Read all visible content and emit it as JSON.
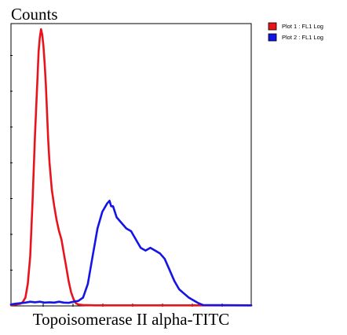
{
  "chart_data": {
    "type": "line",
    "title": "",
    "ylabel": "Counts",
    "xlabel": "Topoisomerase II alpha-TITC",
    "xlim": [
      0,
      100
    ],
    "ylim": [
      0,
      100
    ],
    "x_scale": "log",
    "y_ticks_labeled": false,
    "grid": false,
    "legend": {
      "placement": "top-right-outside",
      "entries": [
        "Plot 1 : FL1 Log",
        "Plot 2 : FL1 Log"
      ]
    },
    "series": [
      {
        "name": "Plot 1 : FL1 Log",
        "color": "#e8141c",
        "x": [
          0,
          2,
          4,
          5,
          6,
          7,
          8,
          9,
          10,
          11,
          11.5,
          12,
          12.5,
          13,
          13.5,
          14,
          14.5,
          15,
          15.5,
          16,
          17,
          18,
          19,
          20,
          21,
          22,
          23,
          24,
          25,
          26,
          27,
          28,
          30,
          35,
          40,
          50,
          60,
          70,
          80,
          90,
          100
        ],
        "y": [
          0.3,
          0.5,
          0.8,
          1.5,
          3,
          8,
          18,
          38,
          62,
          82,
          92,
          97,
          100,
          98,
          94,
          88,
          80,
          70,
          60,
          52,
          42,
          36,
          31,
          27,
          24,
          19,
          14,
          9,
          5,
          2.5,
          1,
          0.5,
          0.3,
          0.2,
          0.2,
          0.2,
          0.2,
          0.2,
          0.2,
          0.2,
          0.2
        ]
      },
      {
        "name": "Plot 2 : FL1 Log",
        "color": "#1414e6",
        "x": [
          0,
          2,
          4,
          6,
          8,
          10,
          12,
          14,
          16,
          18,
          20,
          22,
          24,
          26,
          28,
          30,
          32,
          34,
          36,
          38,
          40,
          41,
          41.7,
          42.5,
          44,
          46,
          48,
          50,
          52,
          54,
          56,
          58,
          60,
          62,
          64,
          66,
          68,
          70,
          72,
          74,
          76,
          78,
          80,
          100
        ],
        "y": [
          0.5,
          0.8,
          1,
          1.2,
          1.5,
          1.3,
          1.5,
          1.2,
          1.3,
          1.2,
          1.5,
          1.2,
          1.1,
          1.5,
          1.8,
          3,
          8,
          18,
          28,
          34,
          37,
          38,
          36,
          36,
          32,
          30,
          28,
          27,
          24,
          21,
          20,
          21,
          20,
          19,
          17,
          13,
          9,
          6,
          4.5,
          3,
          2,
          1,
          0.3,
          0.2
        ]
      }
    ]
  }
}
